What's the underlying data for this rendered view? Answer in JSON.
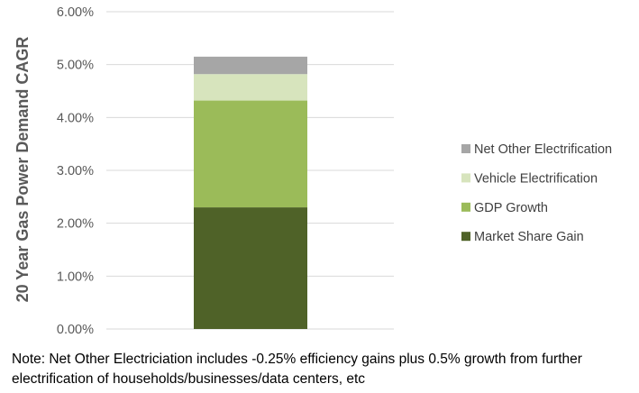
{
  "chart_data": {
    "type": "bar",
    "stacked": true,
    "categories": [
      ""
    ],
    "ylabel": "20 Year Gas Power Demand CAGR",
    "ylim": [
      0,
      0.06
    ],
    "yticks": [
      "0.00%",
      "1.00%",
      "2.00%",
      "3.00%",
      "4.00%",
      "5.00%",
      "6.00%"
    ],
    "grid": true,
    "legend_position": "right",
    "series": [
      {
        "name": "Market Share Gain",
        "values": [
          0.023
        ],
        "color": "#4f6228"
      },
      {
        "name": "GDP Growth",
        "values": [
          0.0202
        ],
        "color": "#9bbb59"
      },
      {
        "name": "Vehicle Electrification",
        "values": [
          0.005
        ],
        "color": "#d7e4bd"
      },
      {
        "name": "Net Other Electrification",
        "values": [
          0.0033
        ],
        "color": "#a6a6a6"
      }
    ]
  },
  "note": {
    "line1": "Note: Net Other Electriciation includes -0.25% efficiency gains plus 0.5% growth from further",
    "line2": "electrification of households/businesses/data centers, etc"
  }
}
